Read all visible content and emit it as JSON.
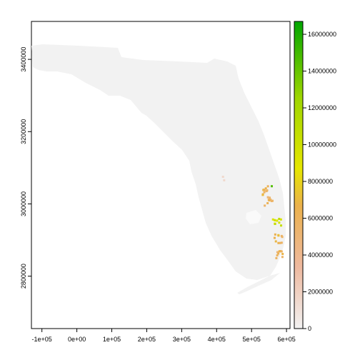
{
  "chart_data": {
    "type": "heatmap",
    "x_ticks": [
      "-1e+05",
      "0e+00",
      "1e+05",
      "2e+05",
      "3e+05",
      "4e+05",
      "5e+05",
      "6e+05"
    ],
    "x_tick_values": [
      -100000,
      0,
      100000,
      200000,
      300000,
      400000,
      500000,
      600000
    ],
    "y_ticks": [
      "2800000",
      "3000000",
      "3200000",
      "3400000"
    ],
    "y_tick_values": [
      2800000,
      3000000,
      3200000,
      3400000
    ],
    "xlim": [
      -130000,
      610000
    ],
    "ylim": [
      2655000,
      3505000
    ],
    "legend": {
      "position": "right",
      "ticks": [
        "0",
        "2000000",
        "4000000",
        "6000000",
        "8000000",
        "10000000",
        "12000000",
        "14000000",
        "16000000"
      ],
      "tick_values": [
        0,
        2000000,
        4000000,
        6000000,
        8000000,
        10000000,
        12000000,
        14000000,
        16000000
      ],
      "range": [
        0,
        16700000
      ],
      "colors": [
        "#f2f2f2",
        "#eeb99f",
        "#ebb14c",
        "#e6e600",
        "#9fd600",
        "#00a600"
      ]
    },
    "background_value_color": "#f2f2f2",
    "hotspots": [
      {
        "x": 540000,
        "y": 3040000,
        "value": 6200000
      },
      {
        "x": 545000,
        "y": 3010000,
        "value": 6000000
      },
      {
        "x": 570000,
        "y": 2955000,
        "value": 9500000
      },
      {
        "x": 575000,
        "y": 2905000,
        "value": 6500000
      },
      {
        "x": 580000,
        "y": 2860000,
        "value": 6000000
      },
      {
        "x": 565000,
        "y": 3040000,
        "value": 16000000
      },
      {
        "x": 420000,
        "y": 3065000,
        "value": 1500000
      }
    ]
  }
}
